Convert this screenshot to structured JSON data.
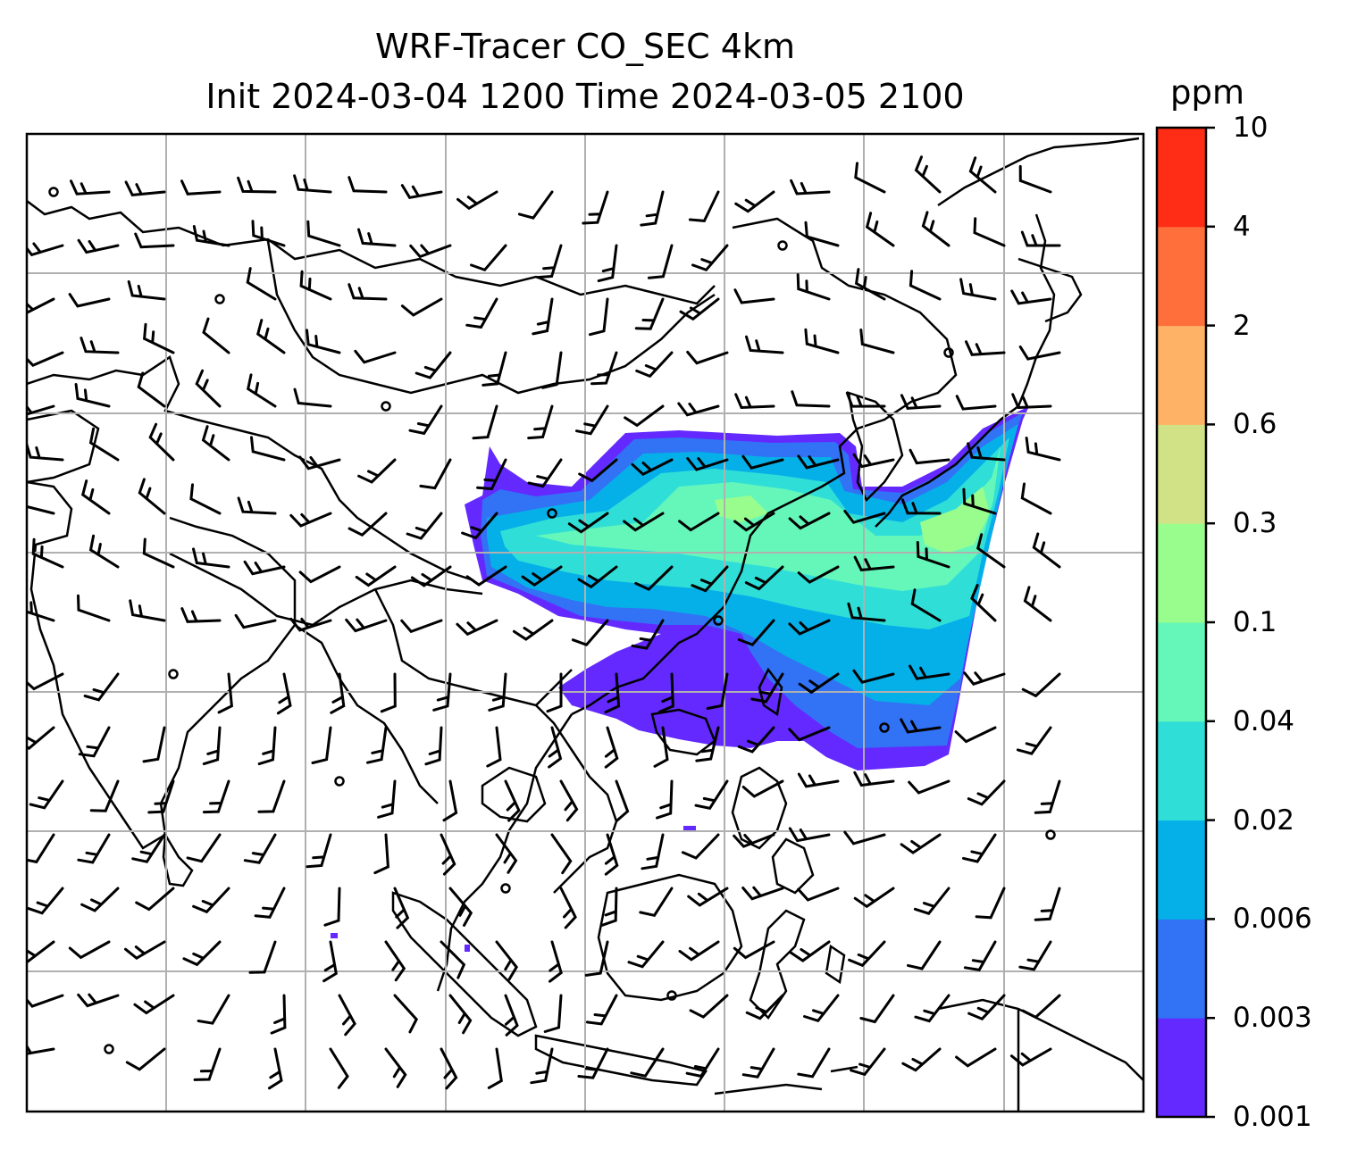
{
  "title_line1": "WRF-Tracer CO_SEC 4km",
  "title_line2": "Init 2024-03-04 1200 Time 2024-03-05 2100",
  "colorbar": {
    "unit": "ppm",
    "levels": [
      "0.001",
      "0.003",
      "0.006",
      "0.02",
      "0.04",
      "0.1",
      "0.3",
      "0.6",
      "2",
      "4",
      "10"
    ],
    "colors": [
      "#6329ff",
      "#3272f5",
      "#05b0e8",
      "#30ded8",
      "#65f7b9",
      "#99fd8e",
      "#d0e285",
      "#feb265",
      "#fe6f3b",
      "#ff2c16"
    ]
  },
  "map": {
    "gridlines": true,
    "field": "CO_SEC tracer concentration (filled contours)",
    "overlay": "wind barbs"
  }
}
